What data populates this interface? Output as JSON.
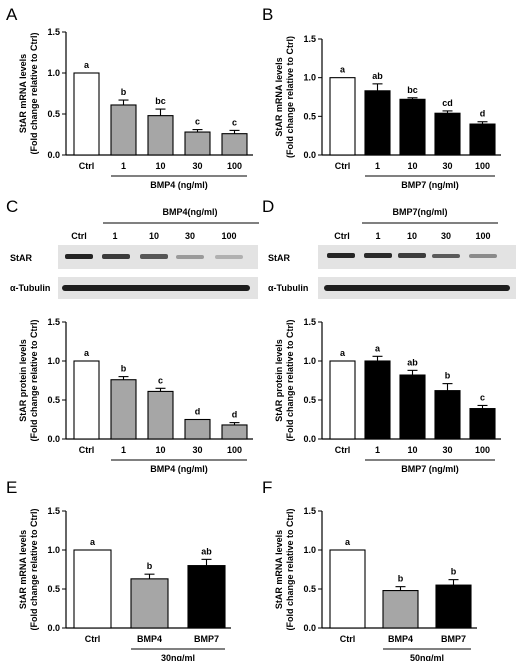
{
  "panels": [
    {
      "letter": "A"
    },
    {
      "letter": "B"
    },
    {
      "letter": "C"
    },
    {
      "letter": "D"
    },
    {
      "letter": "E"
    },
    {
      "letter": "F"
    }
  ],
  "blots": [
    {
      "treatment": "BMP4(ng/ml)",
      "lanes": [
        "Ctrl",
        "1",
        "10",
        "30",
        "100"
      ],
      "rows": [
        "StAR",
        "α-Tubulin"
      ]
    },
    {
      "treatment": "BMP7(ng/ml)",
      "lanes": [
        "Ctrl",
        "1",
        "10",
        "30",
        "100"
      ],
      "rows": [
        "StAR",
        "α-Tubulin"
      ]
    }
  ],
  "colors": {
    "ctrl": "#ffffff",
    "bmp4": "#a6a6a6",
    "bmp7": "#000000",
    "axis": "#000000"
  },
  "chart_data": [
    {
      "panel": "A",
      "type": "bar",
      "title": "",
      "categories": [
        "Ctrl",
        "1",
        "10",
        "30",
        "100"
      ],
      "values": [
        1.0,
        0.61,
        0.48,
        0.28,
        0.26
      ],
      "errors": [
        0,
        0.06,
        0.08,
        0.03,
        0.04
      ],
      "letters": [
        "a",
        "b",
        "bc",
        "c",
        "c"
      ],
      "fills": [
        "ctrl",
        "bmp4",
        "bmp4",
        "bmp4",
        "bmp4"
      ],
      "xlabel": "BMP4 (ng/ml)",
      "xlabel_span": [
        1,
        4
      ],
      "ylabel": [
        "StAR mRNA levels",
        "(Fold change relative to Ctrl)"
      ],
      "ylim": [
        0,
        1.5
      ],
      "yticks": [
        "0.0",
        "0.5",
        "1.0",
        "1.5"
      ]
    },
    {
      "panel": "B",
      "type": "bar",
      "title": "",
      "categories": [
        "Ctrl",
        "1",
        "10",
        "30",
        "100"
      ],
      "values": [
        1.0,
        0.83,
        0.72,
        0.54,
        0.4
      ],
      "errors": [
        0,
        0.09,
        0.02,
        0.03,
        0.03
      ],
      "letters": [
        "a",
        "ab",
        "bc",
        "cd",
        "d"
      ],
      "fills": [
        "ctrl",
        "bmp7",
        "bmp7",
        "bmp7",
        "bmp7"
      ],
      "xlabel": "BMP7 (ng/ml)",
      "xlabel_span": [
        1,
        4
      ],
      "ylabel": [
        "StAR mRNA levels",
        "(Fold change relative to Ctrl)"
      ],
      "ylim": [
        0,
        1.5
      ],
      "yticks": [
        "0.0",
        "0.5",
        "1.0",
        "1.5"
      ]
    },
    {
      "panel": "C",
      "type": "bar",
      "title": "",
      "categories": [
        "Ctrl",
        "1",
        "10",
        "30",
        "100"
      ],
      "values": [
        1.0,
        0.76,
        0.61,
        0.25,
        0.18
      ],
      "errors": [
        0,
        0.04,
        0.04,
        0.0,
        0.03
      ],
      "letters": [
        "a",
        "b",
        "c",
        "d",
        "d"
      ],
      "fills": [
        "ctrl",
        "bmp4",
        "bmp4",
        "bmp4",
        "bmp4"
      ],
      "xlabel": "BMP4 (ng/ml)",
      "xlabel_span": [
        1,
        4
      ],
      "ylabel": [
        "StAR protein levels",
        "(Fold change relative to Ctrl)"
      ],
      "ylim": [
        0,
        1.5
      ],
      "yticks": [
        "0.0",
        "0.5",
        "1.0",
        "1.5"
      ]
    },
    {
      "panel": "D",
      "type": "bar",
      "title": "",
      "categories": [
        "Ctrl",
        "1",
        "10",
        "30",
        "100"
      ],
      "values": [
        1.0,
        1.0,
        0.82,
        0.62,
        0.39
      ],
      "errors": [
        0,
        0.06,
        0.06,
        0.09,
        0.04
      ],
      "letters": [
        "a",
        "a",
        "ab",
        "b",
        "c"
      ],
      "fills": [
        "ctrl",
        "bmp7",
        "bmp7",
        "bmp7",
        "bmp7"
      ],
      "xlabel": "BMP7 (ng/ml)",
      "xlabel_span": [
        1,
        4
      ],
      "ylabel": [
        "StAR protein levels",
        "(Fold change relative to Ctrl)"
      ],
      "ylim": [
        0,
        1.5
      ],
      "yticks": [
        "0.0",
        "0.5",
        "1.0",
        "1.5"
      ]
    },
    {
      "panel": "E",
      "type": "bar",
      "title": "",
      "categories": [
        "Ctrl",
        "BMP4",
        "BMP7"
      ],
      "values": [
        1.0,
        0.63,
        0.8
      ],
      "errors": [
        0,
        0.06,
        0.08
      ],
      "letters": [
        "a",
        "b",
        "ab"
      ],
      "fills": [
        "ctrl",
        "bmp4",
        "bmp7"
      ],
      "xlabel": "30ng/ml",
      "xlabel_span": [
        1,
        2
      ],
      "ylabel": [
        "StAR mRNA levels",
        "(Fold change relative to Ctrl)"
      ],
      "ylim": [
        0,
        1.5
      ],
      "yticks": [
        "0.0",
        "0.5",
        "1.0",
        "1.5"
      ]
    },
    {
      "panel": "F",
      "type": "bar",
      "title": "",
      "categories": [
        "Ctrl",
        "BMP4",
        "BMP7"
      ],
      "values": [
        1.0,
        0.48,
        0.55
      ],
      "errors": [
        0,
        0.05,
        0.07
      ],
      "letters": [
        "a",
        "b",
        "b"
      ],
      "fills": [
        "ctrl",
        "bmp4",
        "bmp7"
      ],
      "xlabel": "50ng/ml",
      "xlabel_span": [
        1,
        2
      ],
      "ylabel": [
        "StAR mRNA levels",
        "(Fold change relative to Ctrl)"
      ],
      "ylim": [
        0,
        1.5
      ],
      "yticks": [
        "0.0",
        "0.5",
        "1.0",
        "1.5"
      ]
    }
  ]
}
